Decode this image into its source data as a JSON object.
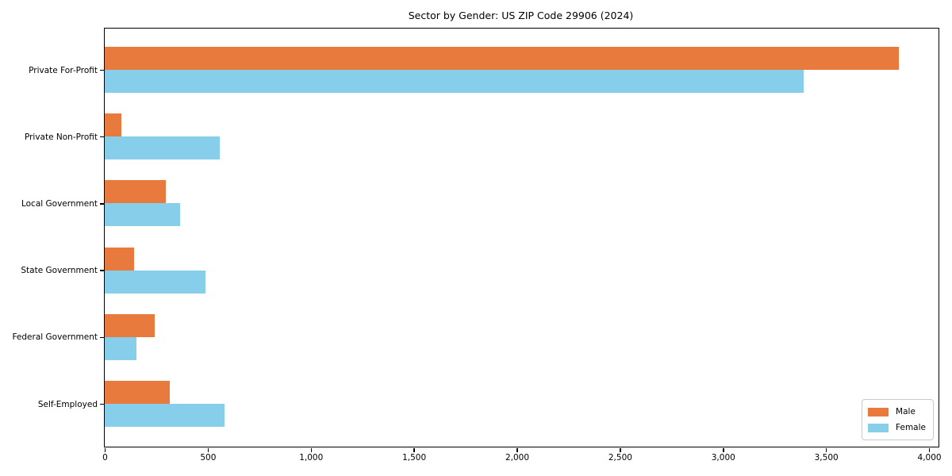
{
  "title": "Sector by Gender: US ZIP Code 29906 (2024)",
  "colors": {
    "male": "#e87a3d",
    "female": "#87ceeb",
    "axis": "#000000",
    "legend_border": "#c9c9c9",
    "background": "#ffffff"
  },
  "chart_data": {
    "type": "bar",
    "orientation": "horizontal",
    "title": "Sector by Gender: US ZIP Code 29906 (2024)",
    "categories": [
      "Private For-Profit",
      "Private Non-Profit",
      "Local Government",
      "State Government",
      "Federal Government",
      "Self-Employed"
    ],
    "series": [
      {
        "name": "Male",
        "color": "#e87a3d",
        "values": [
          3855,
          80,
          297,
          143,
          243,
          316
        ]
      },
      {
        "name": "Female",
        "color": "#87ceeb",
        "values": [
          3390,
          558,
          366,
          489,
          155,
          581
        ]
      }
    ],
    "xlabel": "",
    "ylabel": "",
    "xlim": [
      0,
      4046
    ],
    "xticks": [
      0,
      500,
      1000,
      1500,
      2000,
      2500,
      3000,
      3500,
      4000
    ],
    "xtick_labels": [
      "0",
      "500",
      "1,000",
      "1,500",
      "2,000",
      "2,500",
      "3,000",
      "3,500",
      "4,000"
    ],
    "grid": false,
    "legend": {
      "position": "lower right",
      "entries": [
        "Male",
        "Female"
      ]
    }
  }
}
